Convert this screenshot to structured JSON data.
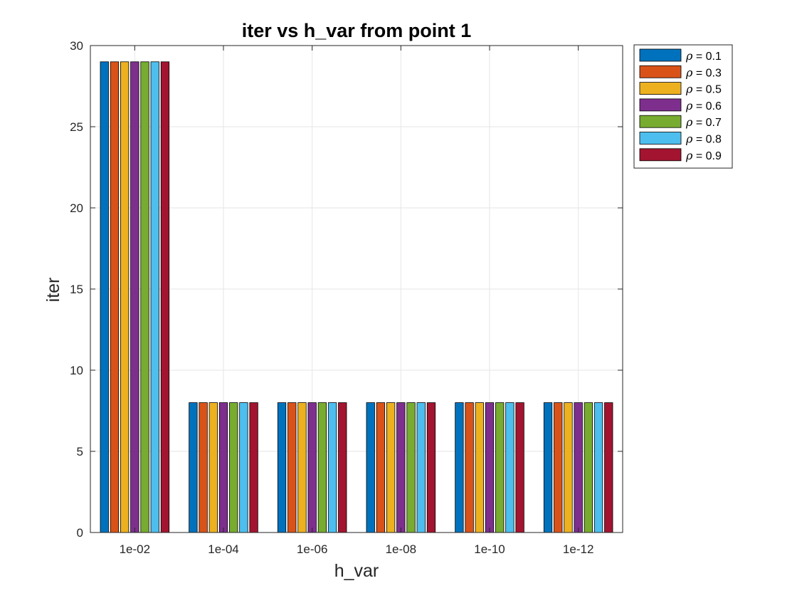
{
  "chart_data": {
    "type": "bar",
    "title": "iter vs h_var from point 1",
    "xlabel": "h_var",
    "ylabel": "iter",
    "categories": [
      "1e-02",
      "1e-04",
      "1e-06",
      "1e-08",
      "1e-10",
      "1e-12"
    ],
    "ylim": [
      0,
      30
    ],
    "yticks": [
      0,
      5,
      10,
      15,
      20,
      25,
      30
    ],
    "grid": true,
    "legend_position": "outside-top-right",
    "series": [
      {
        "name": "0.1",
        "color": "#0072BD",
        "values": [
          29,
          8,
          8,
          8,
          8,
          8
        ]
      },
      {
        "name": "0.3",
        "color": "#D95319",
        "values": [
          29,
          8,
          8,
          8,
          8,
          8
        ]
      },
      {
        "name": "0.5",
        "color": "#EDB120",
        "values": [
          29,
          8,
          8,
          8,
          8,
          8
        ]
      },
      {
        "name": "0.6",
        "color": "#7E2F8E",
        "values": [
          29,
          8,
          8,
          8,
          8,
          8
        ]
      },
      {
        "name": "0.7",
        "color": "#77AC30",
        "values": [
          29,
          8,
          8,
          8,
          8,
          8
        ]
      },
      {
        "name": "0.8",
        "color": "#4DBEEE",
        "values": [
          29,
          8,
          8,
          8,
          8,
          8
        ]
      },
      {
        "name": "0.9",
        "color": "#A2142F",
        "values": [
          29,
          8,
          8,
          8,
          8,
          8
        ]
      }
    ],
    "legend_prefix": "ρ = "
  }
}
